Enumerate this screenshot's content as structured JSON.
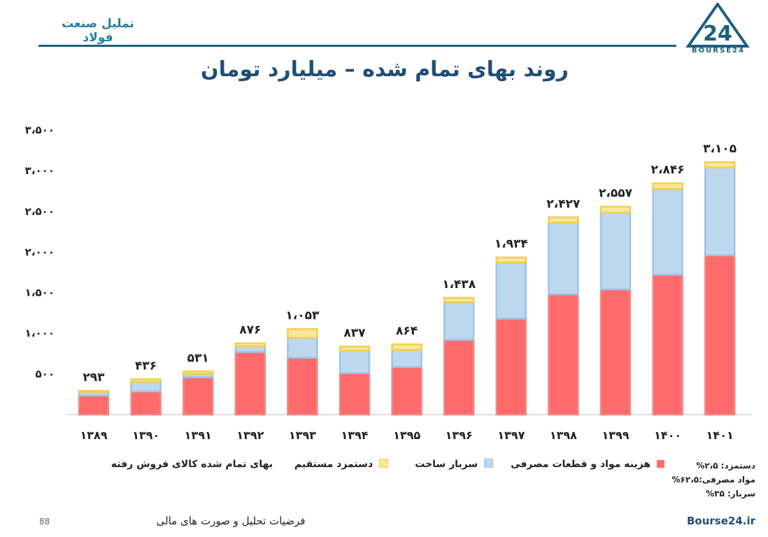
{
  "header": {
    "brand": "تملیل صنعت فولاد",
    "logo_text": "BOURSE24",
    "logo_glyph": "24"
  },
  "colors": {
    "primary": "#1f4e79",
    "teal": "#2a7f9c",
    "red": "#ff6b6b",
    "blue": "#bdd7ee",
    "yellow": "#fbe79a"
  },
  "chart_data": {
    "type": "bar",
    "stacked": true,
    "title": "روند بهای تمام شده – میلیارد تومان",
    "categories": [
      "۱۳۸۹",
      "۱۳۹۰",
      "۱۳۹۱",
      "۱۳۹۲",
      "۱۳۹۳",
      "۱۳۹۴",
      "۱۳۹۵",
      "۱۳۹۶",
      "۱۳۹۷",
      "۱۳۹۸",
      "۱۳۹۹",
      "۱۴۰۰",
      "۱۴۰۱"
    ],
    "series": [
      {
        "name": "هزینه مواد و قطعات مصرفی",
        "color": "#ff6b6b",
        "values": [
          235,
          285,
          460,
          770,
          700,
          510,
          585,
          920,
          1180,
          1480,
          1540,
          1720,
          1960
        ]
      },
      {
        "name": "سربار ساخت",
        "color": "#bdd7ee",
        "values": [
          40,
          120,
          40,
          70,
          245,
          275,
          209,
          463,
          690,
          880,
          945,
          1055,
          1080
        ]
      },
      {
        "name": "دستمزد مستقیم",
        "color": "#fbe79a",
        "values": [
          18,
          31,
          31,
          36,
          108,
          52,
          70,
          55,
          64,
          67,
          72,
          71,
          65
        ]
      }
    ],
    "totals": [
      293,
      436,
      531,
      876,
      1053,
      837,
      864,
      1438,
      1934,
      2427,
      2557,
      2846,
      3105
    ],
    "total_labels": [
      "۲۹۳",
      "۴۳۶",
      "۵۳۱",
      "۸۷۶",
      "۱،۰۵۳",
      "۸۳۷",
      "۸۶۴",
      "۱،۴۳۸",
      "۱،۹۳۴",
      "۲،۴۲۷",
      "۲،۵۵۷",
      "۲،۸۴۶",
      "۳،۱۰۵"
    ],
    "y_ticks": [
      500,
      1000,
      1500,
      2000,
      2500,
      3000,
      3500
    ],
    "y_tick_labels": [
      "۵۰۰",
      "۱،۰۰۰",
      "۱،۵۰۰",
      "۲،۰۰۰",
      "۲،۵۰۰",
      "۳،۰۰۰",
      "۳،۵۰۰"
    ],
    "ylim": [
      0,
      3500
    ],
    "grid": false,
    "legend_position": "bottom"
  },
  "legend": {
    "total_label": "بهای تمام شده کالای فروش رفته"
  },
  "notes": [
    "دستمزد: ۲،۵%",
    "مواد مصرفی:۶۲،۵%",
    "سربار: ۳۵%"
  ],
  "footer": {
    "text": "فرضیات تحلیل و صورت های مالی",
    "page": "88",
    "site": "Bourse24.ir"
  }
}
